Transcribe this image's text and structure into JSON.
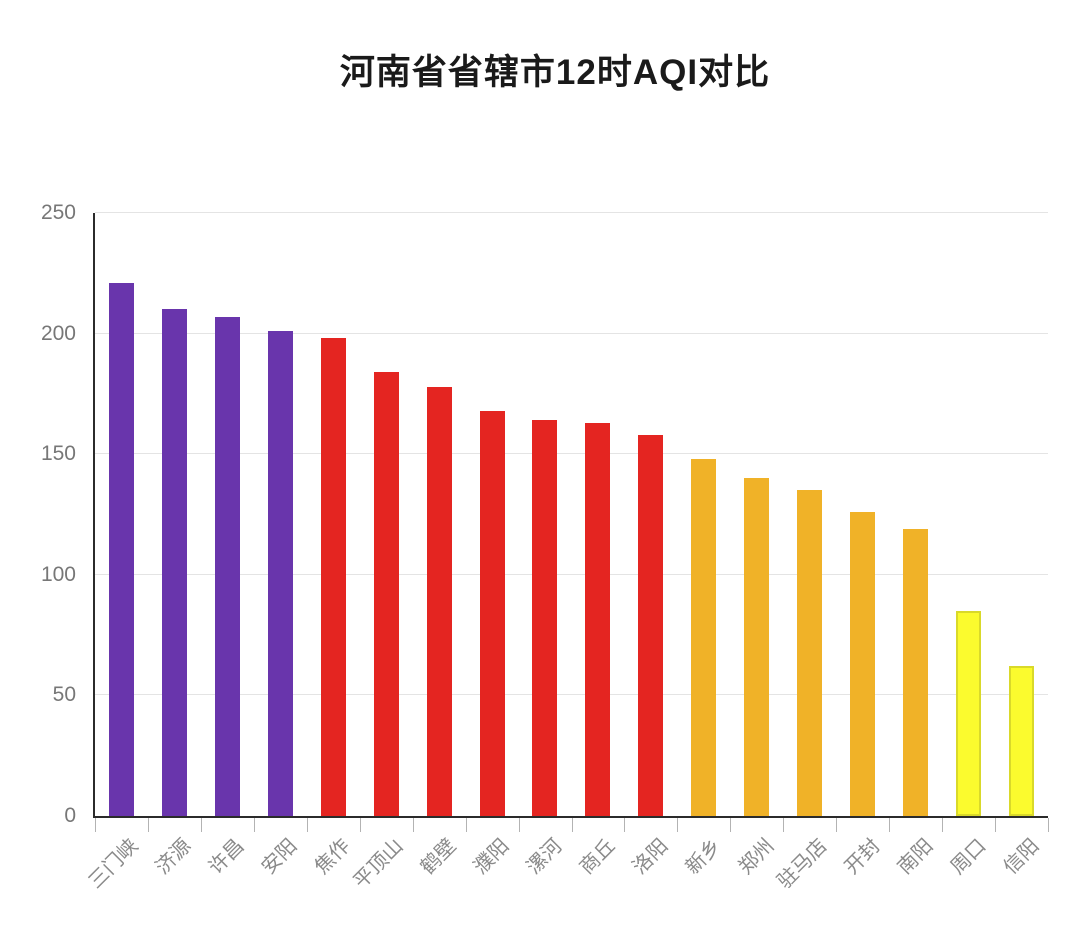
{
  "title": "河南省省辖市12时AQI对比",
  "chart_data": {
    "type": "bar",
    "title": "河南省省辖市12时AQI对比",
    "categories": [
      "三门峡",
      "济源",
      "许昌",
      "安阳",
      "焦作",
      "平顶山",
      "鹤壁",
      "濮阳",
      "漯河",
      "商丘",
      "洛阳",
      "新乡",
      "郑州",
      "驻马店",
      "开封",
      "南阳",
      "周口",
      "信阳"
    ],
    "values": [
      221,
      210,
      207,
      201,
      198,
      184,
      178,
      168,
      164,
      163,
      158,
      148,
      140,
      135,
      126,
      119,
      85,
      62
    ],
    "levels": [
      "purple",
      "purple",
      "purple",
      "purple",
      "red",
      "red",
      "red",
      "red",
      "red",
      "red",
      "red",
      "orange",
      "orange",
      "orange",
      "orange",
      "orange",
      "yellow",
      "yellow"
    ],
    "palette": {
      "purple": "#6935AC",
      "red": "#E42521",
      "orange": "#F0B228",
      "yellow": "#FBFB2E"
    },
    "yellow_border_color": "#D9D92A",
    "xlabel": "",
    "ylabel": "",
    "ylim": [
      0,
      250
    ],
    "yticks": [
      0,
      50,
      100,
      150,
      200,
      250
    ],
    "grid": true,
    "legend_position": "none"
  }
}
